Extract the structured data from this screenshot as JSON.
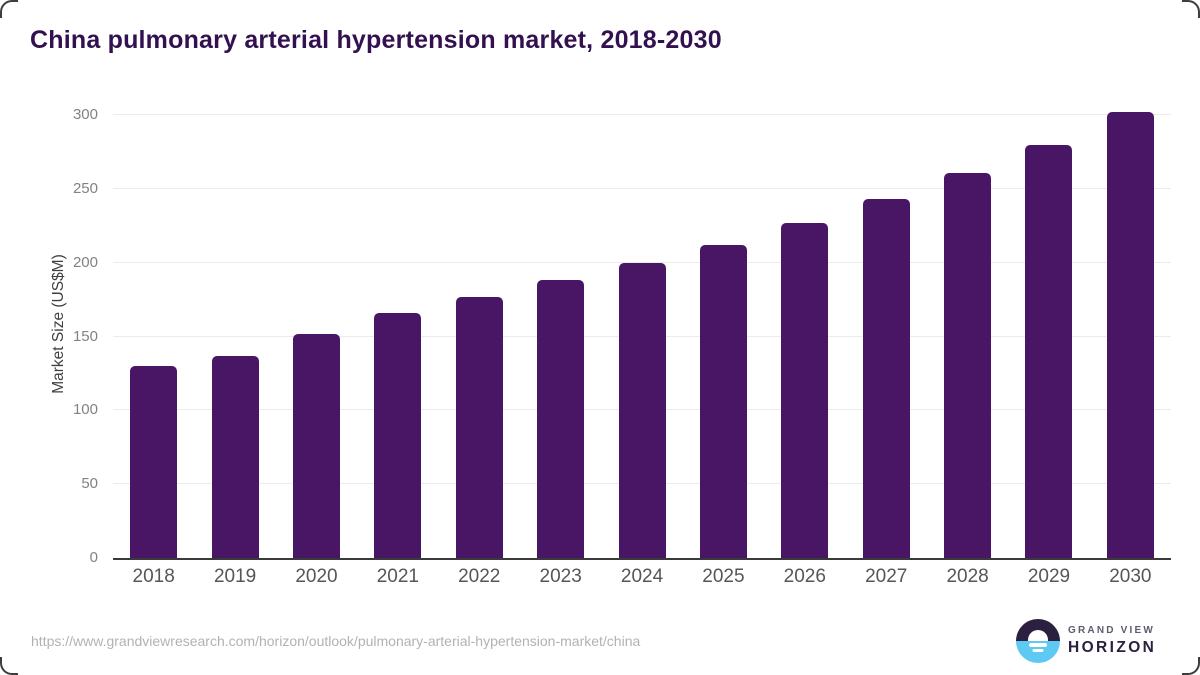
{
  "title": "China pulmonary arterial hypertension market, 2018-2030",
  "chart_data": {
    "type": "bar",
    "title": "China pulmonary arterial hypertension market, 2018-2030",
    "categories": [
      "2018",
      "2019",
      "2020",
      "2021",
      "2022",
      "2023",
      "2024",
      "2025",
      "2026",
      "2027",
      "2028",
      "2029",
      "2030"
    ],
    "values": [
      130,
      137,
      152,
      166,
      177,
      188,
      200,
      212,
      227,
      243,
      261,
      280,
      302
    ],
    "xlabel": "",
    "ylabel": "Market Size (US$M)",
    "ylim": [
      0,
      300
    ],
    "yticks": [
      0,
      50,
      100,
      150,
      200,
      250,
      300
    ],
    "grid": true,
    "legend": false,
    "bar_color": "#491565"
  },
  "footer": {
    "source_url": "https://www.grandviewresearch.com/horizon/outlook/pulmonary-arterial-hypertension-market/china",
    "logo": {
      "line1": "GRAND VIEW",
      "line2": "HORIZON"
    }
  },
  "colors": {
    "title": "#331150",
    "bar": "#491565",
    "gridline": "#ebebeb",
    "axis_line": "#3a3a3a",
    "y_tick_label": "#828282",
    "x_tick_label": "#56565a",
    "source_url": "#b2b2b2",
    "logo_purple": "#2b2040",
    "logo_blue": "#5ec9f2",
    "logo_gray_text": "#5f5b6e"
  },
  "icons": {
    "brand_icon": "horizon-sun-icon"
  }
}
